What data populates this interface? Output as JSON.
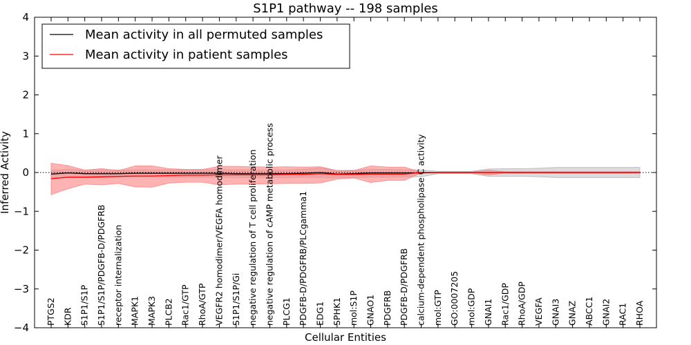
{
  "chart_data": {
    "type": "line",
    "title": "S1P1 pathway -- 198 samples",
    "xlabel": "Cellular Entities",
    "ylabel": "Inferred Activity",
    "ylim": [
      -4,
      4
    ],
    "yticks": [
      {
        "value": 4,
        "label": "4"
      },
      {
        "value": 3,
        "label": "3"
      },
      {
        "value": 2,
        "label": "2"
      },
      {
        "value": 1,
        "label": "1"
      },
      {
        "value": 0,
        "label": "0"
      },
      {
        "value": -1,
        "label": "−1"
      },
      {
        "value": -2,
        "label": "−2"
      },
      {
        "value": -3,
        "label": "−3"
      },
      {
        "value": -4,
        "label": "−4"
      }
    ],
    "grid": false,
    "legend_position": "top-left",
    "colors": {
      "permuted_line": "#000000",
      "permuted_band": "#bfbfbf",
      "patient_line": "#ff0000",
      "patient_band": "#ff8080",
      "zero_line": "#000000"
    },
    "categories": [
      "PTGS2",
      "KDR",
      "S1P1/S1P",
      "S1P1/S1P/PDGFB-D/PDGFRB",
      "receptor internalization",
      "MAPK1",
      "MAPK3",
      "PLCB2",
      "Rac1/GTP",
      "RhoA/GTP",
      "VEGFR2 homodimer/VEGFA homodimer",
      "S1P1/S1P/Gi",
      "negative regulation of T cell proliferation",
      "negative regulation of cAMP metabolic process",
      "PLCG1",
      "PDGFB-D/PDGFRB/PLCgamma1",
      "EDG1",
      "SPHK1",
      "mol:S1P",
      "GNAO1",
      "PDGFRB",
      "PDGFB-D/PDGFRB",
      "calcium-dependent phospholipase C activity",
      "mol:GTP",
      "GO:0007205",
      "mol:GDP",
      "GNAI1",
      "Rac1/GDP",
      "RhoA/GDP",
      "VEGFA",
      "GNAI3",
      "GNAZ",
      "ABCC1",
      "GNAI2",
      "RAC1",
      "RHOA"
    ],
    "series": [
      {
        "name": "Mean activity in all permuted samples",
        "values": [
          -0.04,
          -0.01,
          -0.03,
          -0.03,
          -0.03,
          -0.02,
          -0.02,
          -0.02,
          -0.02,
          -0.02,
          -0.02,
          -0.03,
          -0.03,
          -0.03,
          -0.03,
          -0.02,
          0.0,
          -0.04,
          -0.03,
          -0.01,
          -0.01,
          -0.01,
          -0.01,
          0.0,
          0.0,
          0.0,
          0.0,
          0.0,
          0.0,
          0.0,
          0.0,
          0.0,
          0.0,
          0.0,
          0.0,
          0.0
        ],
        "band_low": [
          -0.14,
          -0.13,
          -0.13,
          -0.13,
          -0.13,
          -0.12,
          -0.12,
          -0.12,
          -0.12,
          -0.12,
          -0.12,
          -0.13,
          -0.13,
          -0.13,
          -0.13,
          -0.12,
          -0.13,
          -0.13,
          -0.13,
          -0.12,
          -0.12,
          -0.11,
          -0.11,
          -0.03,
          -0.03,
          -0.03,
          -0.1,
          -0.1,
          -0.1,
          -0.11,
          -0.13,
          -0.13,
          -0.13,
          -0.13,
          -0.13,
          -0.13
        ],
        "band_high": [
          0.06,
          0.08,
          0.07,
          0.07,
          0.07,
          0.07,
          0.07,
          0.07,
          0.07,
          0.07,
          0.08,
          0.07,
          0.07,
          0.07,
          0.07,
          0.08,
          0.12,
          0.05,
          0.06,
          0.08,
          0.08,
          0.07,
          0.07,
          0.03,
          0.03,
          0.03,
          0.09,
          0.1,
          0.1,
          0.11,
          0.13,
          0.13,
          0.13,
          0.13,
          0.13,
          0.13
        ]
      },
      {
        "name": "Mean activity in patient samples",
        "values": [
          -0.16,
          -0.12,
          -0.12,
          -0.11,
          -0.1,
          -0.09,
          -0.09,
          -0.08,
          -0.07,
          -0.07,
          -0.06,
          -0.06,
          -0.06,
          -0.06,
          -0.05,
          -0.05,
          -0.03,
          -0.05,
          -0.05,
          -0.04,
          -0.04,
          -0.04,
          0.0,
          0.0,
          0.0,
          0.0,
          0.0,
          0.0,
          0.0,
          0.0,
          0.0,
          0.0,
          0.0,
          0.0,
          0.0,
          0.0
        ],
        "band_low": [
          -0.57,
          -0.42,
          -0.3,
          -0.32,
          -0.28,
          -0.37,
          -0.38,
          -0.27,
          -0.25,
          -0.25,
          -0.32,
          -0.3,
          -0.3,
          -0.29,
          -0.28,
          -0.28,
          -0.27,
          -0.17,
          -0.14,
          -0.26,
          -0.2,
          -0.2,
          -0.01,
          -0.01,
          -0.01,
          -0.01,
          -0.06,
          -0.02,
          -0.02,
          -0.02,
          -0.02,
          -0.02,
          -0.02,
          -0.02,
          -0.02,
          -0.02
        ],
        "band_high": [
          0.24,
          0.18,
          0.06,
          0.1,
          0.05,
          0.17,
          0.17,
          0.1,
          0.08,
          0.08,
          0.16,
          0.16,
          0.15,
          0.14,
          0.15,
          0.14,
          0.15,
          0.05,
          0.05,
          0.17,
          0.14,
          0.14,
          0.01,
          0.01,
          0.01,
          0.01,
          0.06,
          0.02,
          0.02,
          0.02,
          0.02,
          0.02,
          0.02,
          0.02,
          0.02,
          0.02
        ]
      }
    ]
  }
}
